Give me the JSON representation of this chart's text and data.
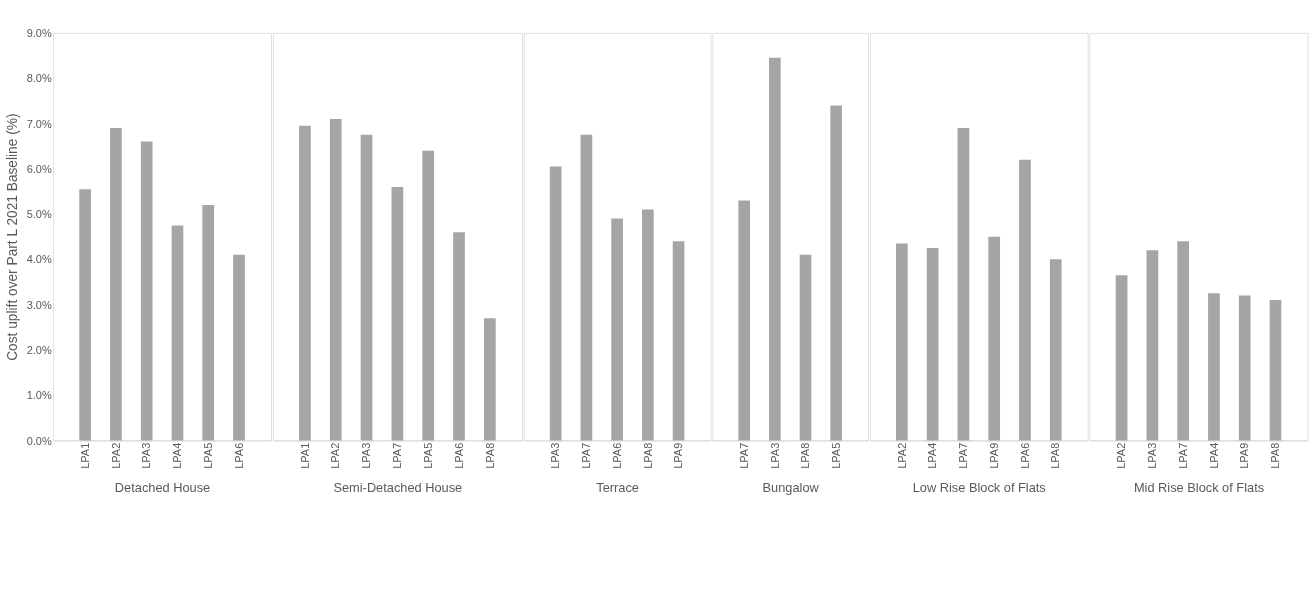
{
  "chart_data": [
    {
      "type": "bar",
      "xlabel": "Detached House",
      "ylabel": "Cost uplift over Part L 2021 Baseline (%)",
      "categories": [
        "LPA1",
        "LPA2",
        "LPA3",
        "LPA4",
        "LPA5",
        "LPA6"
      ],
      "values": [
        5.55,
        6.9,
        6.6,
        4.75,
        5.2,
        4.1
      ],
      "color": "#a5a5a5",
      "ylim": [
        0,
        9
      ],
      "yticks": [
        {
          "value": 0,
          "label": "0.0%"
        },
        {
          "value": 1,
          "label": "1.0%"
        },
        {
          "value": 2,
          "label": "2.0%"
        },
        {
          "value": 3,
          "label": "3.0%"
        },
        {
          "value": 4,
          "label": "4.0%"
        },
        {
          "value": 5,
          "label": "5.0%"
        },
        {
          "value": 6,
          "label": "6.0%"
        },
        {
          "value": 7,
          "label": "7.0%"
        },
        {
          "value": 8,
          "label": "8.0%"
        },
        {
          "value": 9,
          "label": "9.0%"
        }
      ],
      "grid": false
    },
    {
      "type": "bar",
      "xlabel": "Semi-Detached House",
      "categories": [
        "LPA1",
        "LPA2",
        "LPA3",
        "LPA7",
        "LPA5",
        "LPA6",
        "LPA8"
      ],
      "values": [
        6.95,
        7.1,
        6.75,
        5.6,
        6.4,
        4.6,
        2.7
      ],
      "color": "#a5a5a5",
      "ylim": [
        0,
        9
      ],
      "tick_labels": "x",
      "grid": false
    },
    {
      "type": "bar",
      "xlabel": "Terrace",
      "categories": [
        "LPA3",
        "LPA7",
        "LPA6",
        "LPA8",
        "LPA9"
      ],
      "values": [
        6.05,
        6.75,
        4.9,
        5.1,
        4.4
      ],
      "color": "#a5a5a5",
      "ylim": [
        0,
        9
      ],
      "tick_labels": "x",
      "grid": false
    },
    {
      "type": "bar",
      "xlabel": "Bungalow",
      "categories": [
        "LPA7",
        "LPA3",
        "LPA8",
        "LPA5"
      ],
      "values": [
        5.3,
        8.45,
        4.1,
        7.4
      ],
      "color": "#a5a5a5",
      "ylim": [
        0,
        9
      ],
      "tick_labels": "x",
      "grid": false
    },
    {
      "type": "bar",
      "xlabel": "Low Rise Block of Flats",
      "categories": [
        "LPA2",
        "LPA4",
        "LPA7",
        "LPA9",
        "LPA6",
        "LPA8"
      ],
      "values": [
        4.35,
        4.25,
        6.9,
        4.5,
        6.2,
        4.0
      ],
      "color": "#a5a5a5",
      "ylim": [
        0,
        9
      ],
      "tick_labels": "x",
      "grid": false
    },
    {
      "type": "bar",
      "xlabel": "Mid Rise Block of Flats",
      "categories": [
        "LPA2",
        "LPA3",
        "LPA7",
        "LPA4",
        "LPA9",
        "LPA8"
      ],
      "values": [
        3.65,
        4.2,
        4.4,
        3.25,
        3.2,
        3.1
      ],
      "color": "#a5a5a5",
      "ylim": [
        0,
        9
      ],
      "tick_labels": "x",
      "grid": false
    }
  ]
}
